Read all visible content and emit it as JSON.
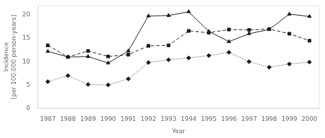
{
  "chart_data": {
    "type": "line",
    "xlabel": "Year",
    "ylabel": "Incidence\n[per 100,000 person-years]",
    "x": [
      1987,
      1988,
      1989,
      1990,
      1991,
      1992,
      1993,
      1994,
      1995,
      1996,
      1997,
      1998,
      1999,
      2000
    ],
    "series": [
      {
        "color": "#1a1a1a",
        "marker": "triangle",
        "line_style": "solid",
        "values": [
          12.2,
          11.0,
          11.1,
          9.7,
          12.3,
          19.8,
          19.9,
          20.7,
          16.5,
          14.3,
          16.0,
          16.9,
          20.2,
          19.7
        ]
      },
      {
        "color": "#1a1a1a",
        "marker": "square",
        "line_style": "dashed",
        "values": [
          13.5,
          11.0,
          12.3,
          11.1,
          11.5,
          13.4,
          13.5,
          16.6,
          16.2,
          16.9,
          16.8,
          17.0,
          16.0,
          14.5
        ]
      },
      {
        "color": "#1a1a1a",
        "marker": "diamond",
        "line_style": "dotted",
        "values": [
          5.7,
          7.0,
          5.1,
          5.0,
          6.3,
          9.8,
          10.4,
          10.8,
          11.3,
          12.0,
          10.0,
          8.8,
          9.5,
          9.9
        ]
      }
    ],
    "xlim": [
      1986.5,
      2000.5
    ],
    "xticks": [
      1987,
      1988,
      1989,
      1990,
      1991,
      1992,
      1993,
      1994,
      1995,
      1996,
      1997,
      1998,
      1999,
      2000
    ],
    "ylim": [
      0,
      22
    ],
    "yticks": [
      0,
      5,
      10,
      15,
      20
    ],
    "grid": false
  }
}
